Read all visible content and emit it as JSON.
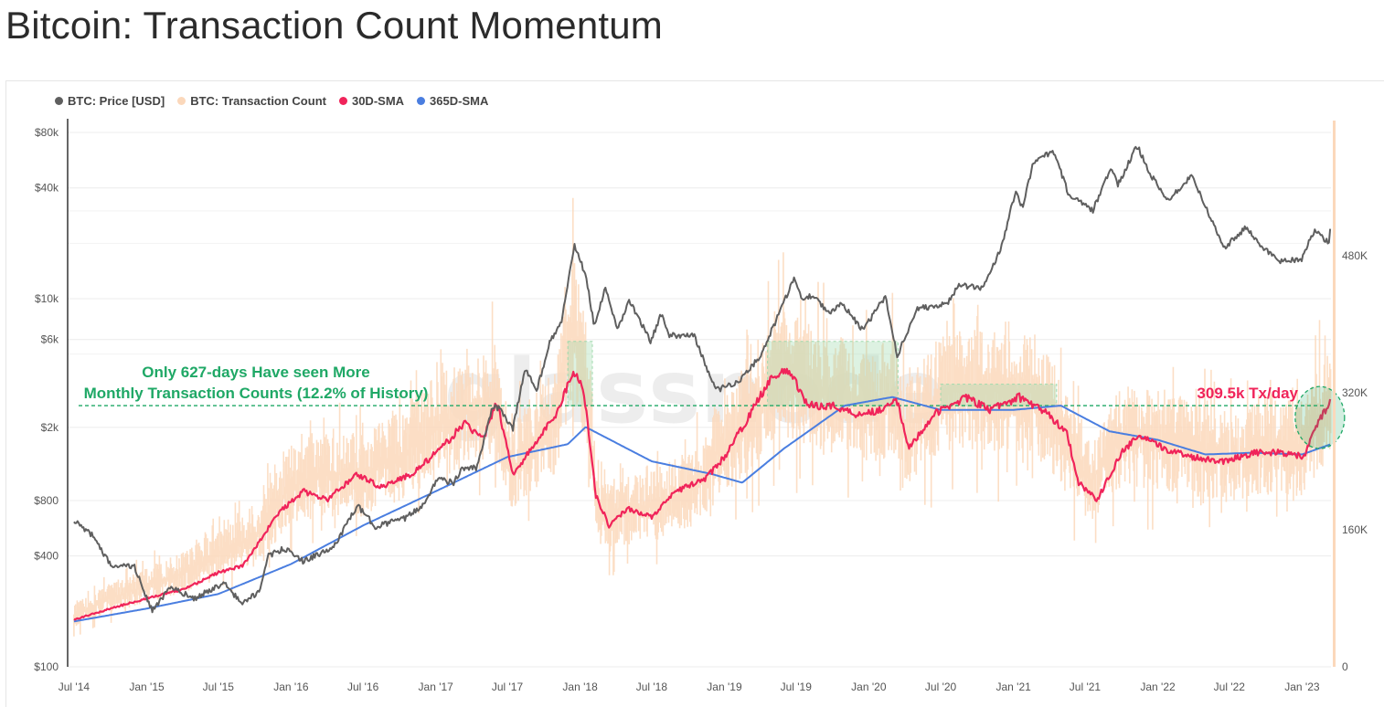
{
  "page": {
    "title": "Bitcoin: Transaction Count Momentum"
  },
  "legend": [
    {
      "label": "BTC: Price [USD]",
      "color": "#5f5f5f"
    },
    {
      "label": "BTC: Transaction Count",
      "color": "#fbd8bb"
    },
    {
      "label": "30D-SMA",
      "color": "#f0245a"
    },
    {
      "label": "365D-SMA",
      "color": "#4a7ee0"
    }
  ],
  "watermark": "glassnode",
  "chart_data": {
    "type": "line",
    "x_axis": {
      "ticks": [
        "Jul '14",
        "Jan '15",
        "Jul '15",
        "Jan '16",
        "Jul '16",
        "Jan '17",
        "Jul '17",
        "Jan '18",
        "Jul '18",
        "Jan '19",
        "Jul '19",
        "Jan '20",
        "Jul '20",
        "Jan '21",
        "Jul '21",
        "Jan '22",
        "Jul '22",
        "Jan '23"
      ],
      "tick_dates": [
        "2014-07-01",
        "2015-01-01",
        "2015-07-01",
        "2016-01-01",
        "2016-07-01",
        "2017-01-01",
        "2017-07-01",
        "2018-01-01",
        "2018-07-01",
        "2019-01-01",
        "2019-07-01",
        "2020-01-01",
        "2020-07-01",
        "2021-01-01",
        "2021-07-01",
        "2022-01-01",
        "2022-07-01",
        "2023-01-01"
      ],
      "range": [
        "2014-06-15",
        "2023-03-15"
      ]
    },
    "y_left": {
      "scale": "log",
      "unit": "USD",
      "ticks": [
        {
          "value": 100,
          "label": "$100"
        },
        {
          "value": 400,
          "label": "$400"
        },
        {
          "value": 800,
          "label": "$800"
        },
        {
          "value": 2000,
          "label": "$2k"
        },
        {
          "value": 6000,
          "label": "$6k"
        },
        {
          "value": 10000,
          "label": "$10k"
        },
        {
          "value": 40000,
          "label": "$40k"
        },
        {
          "value": 80000,
          "label": "$80k"
        }
      ],
      "range": [
        100,
        95000
      ]
    },
    "y_right": {
      "scale": "linear",
      "ticks": [
        {
          "value": 0,
          "label": "0"
        },
        {
          "value": 160000,
          "label": "160K"
        },
        {
          "value": 320000,
          "label": "320K"
        },
        {
          "value": 480000,
          "label": "480K"
        }
      ],
      "range": [
        0,
        640000
      ]
    },
    "grid": true,
    "legend_position": "top-left",
    "series": [
      {
        "name": "BTC: Price [USD]",
        "axis": "left",
        "color": "#5f5f5f",
        "points": [
          [
            "2014-07-01",
            630
          ],
          [
            "2014-08-15",
            520
          ],
          [
            "2014-10-01",
            360
          ],
          [
            "2014-12-01",
            350
          ],
          [
            "2015-01-15",
            200
          ],
          [
            "2015-03-01",
            270
          ],
          [
            "2015-05-01",
            235
          ],
          [
            "2015-07-15",
            285
          ],
          [
            "2015-08-30",
            220
          ],
          [
            "2015-10-15",
            260
          ],
          [
            "2015-11-05",
            400
          ],
          [
            "2015-12-15",
            440
          ],
          [
            "2016-02-01",
            375
          ],
          [
            "2016-04-15",
            440
          ],
          [
            "2016-06-17",
            750
          ],
          [
            "2016-08-01",
            580
          ],
          [
            "2016-10-15",
            640
          ],
          [
            "2016-12-01",
            760
          ],
          [
            "2017-01-04",
            1050
          ],
          [
            "2017-02-15",
            1000
          ],
          [
            "2017-03-10",
            1200
          ],
          [
            "2017-04-15",
            1200
          ],
          [
            "2017-05-25",
            2600
          ],
          [
            "2017-06-15",
            2500
          ],
          [
            "2017-07-15",
            1950
          ],
          [
            "2017-08-15",
            4200
          ],
          [
            "2017-09-14",
            3200
          ],
          [
            "2017-10-15",
            5700
          ],
          [
            "2017-11-15",
            7500
          ],
          [
            "2017-12-17",
            19500
          ],
          [
            "2018-01-15",
            13500
          ],
          [
            "2018-02-06",
            7000
          ],
          [
            "2018-03-05",
            11500
          ],
          [
            "2018-04-05",
            6700
          ],
          [
            "2018-05-05",
            9800
          ],
          [
            "2018-06-28",
            5900
          ],
          [
            "2018-07-25",
            8200
          ],
          [
            "2018-08-15",
            6300
          ],
          [
            "2018-10-15",
            6400
          ],
          [
            "2018-11-25",
            3800
          ],
          [
            "2018-12-15",
            3200
          ],
          [
            "2019-02-10",
            3600
          ],
          [
            "2019-04-02",
            4900
          ],
          [
            "2019-05-15",
            7900
          ],
          [
            "2019-06-26",
            13000
          ],
          [
            "2019-07-15",
            10000
          ],
          [
            "2019-08-15",
            10500
          ],
          [
            "2019-09-25",
            8200
          ],
          [
            "2019-10-26",
            9500
          ],
          [
            "2019-12-17",
            6700
          ],
          [
            "2020-02-12",
            10300
          ],
          [
            "2020-03-13",
            4900
          ],
          [
            "2020-05-01",
            8800
          ],
          [
            "2020-07-15",
            9300
          ],
          [
            "2020-08-15",
            11800
          ],
          [
            "2020-10-15",
            11400
          ],
          [
            "2020-12-01",
            19000
          ],
          [
            "2021-01-08",
            40000
          ],
          [
            "2021-01-23",
            31000
          ],
          [
            "2021-02-21",
            56000
          ],
          [
            "2021-04-14",
            63000
          ],
          [
            "2021-05-20",
            37000
          ],
          [
            "2021-07-20",
            30000
          ],
          [
            "2021-09-06",
            52000
          ],
          [
            "2021-09-21",
            41000
          ],
          [
            "2021-11-10",
            68000
          ],
          [
            "2021-12-15",
            47000
          ],
          [
            "2022-01-24",
            34000
          ],
          [
            "2022-03-29",
            47000
          ],
          [
            "2022-05-12",
            28000
          ],
          [
            "2022-06-18",
            19000
          ],
          [
            "2022-08-14",
            24500
          ],
          [
            "2022-09-15",
            19500
          ],
          [
            "2022-11-09",
            16000
          ],
          [
            "2022-12-31",
            16500
          ],
          [
            "2023-02-01",
            23500
          ],
          [
            "2023-03-10",
            20000
          ],
          [
            "2023-03-15",
            26000
          ]
        ]
      },
      {
        "name": "BTC: Transaction Count",
        "axis": "right",
        "color": "#fbd8bb",
        "points": [
          [
            "2014-07-01",
            60000
          ],
          [
            "2014-10-01",
            80000
          ],
          [
            "2015-01-01",
            95000
          ],
          [
            "2015-04-01",
            110000
          ],
          [
            "2015-07-01",
            130000
          ],
          [
            "2015-10-01",
            150000
          ],
          [
            "2016-01-01",
            210000
          ],
          [
            "2016-04-01",
            225000
          ],
          [
            "2016-07-01",
            225000
          ],
          [
            "2016-10-01",
            245000
          ],
          [
            "2017-01-01",
            280000
          ],
          [
            "2017-04-01",
            300000
          ],
          [
            "2017-06-01",
            310000
          ],
          [
            "2017-07-15",
            230000
          ],
          [
            "2017-09-01",
            260000
          ],
          [
            "2017-11-01",
            290000
          ],
          [
            "2017-12-15",
            410000
          ],
          [
            "2018-01-15",
            330000
          ],
          [
            "2018-02-15",
            180000
          ],
          [
            "2018-04-15",
            180000
          ],
          [
            "2018-07-15",
            190000
          ],
          [
            "2018-10-15",
            210000
          ],
          [
            "2019-01-01",
            260000
          ],
          [
            "2019-03-01",
            285000
          ],
          [
            "2019-05-15",
            350000
          ],
          [
            "2019-08-01",
            330000
          ],
          [
            "2019-10-01",
            320000
          ],
          [
            "2020-01-01",
            300000
          ],
          [
            "2020-03-01",
            320000
          ],
          [
            "2020-04-01",
            270000
          ],
          [
            "2020-07-01",
            320000
          ],
          [
            "2020-10-01",
            325000
          ],
          [
            "2021-01-01",
            320000
          ],
          [
            "2021-03-01",
            320000
          ],
          [
            "2021-05-15",
            260000
          ],
          [
            "2021-07-15",
            215000
          ],
          [
            "2021-10-01",
            270000
          ],
          [
            "2022-01-01",
            265000
          ],
          [
            "2022-04-01",
            255000
          ],
          [
            "2022-07-01",
            245000
          ],
          [
            "2022-10-01",
            255000
          ],
          [
            "2023-01-01",
            255000
          ],
          [
            "2023-02-15",
            295000
          ],
          [
            "2023-03-15",
            305000
          ]
        ]
      },
      {
        "name": "30D-SMA",
        "axis": "right",
        "color": "#f0245a",
        "points": [
          [
            "2014-07-01",
            55000
          ],
          [
            "2014-10-01",
            68000
          ],
          [
            "2015-01-01",
            80000
          ],
          [
            "2015-04-01",
            90000
          ],
          [
            "2015-07-01",
            110000
          ],
          [
            "2015-09-01",
            118000
          ],
          [
            "2015-12-01",
            180000
          ],
          [
            "2016-02-01",
            205000
          ],
          [
            "2016-04-01",
            195000
          ],
          [
            "2016-06-15",
            225000
          ],
          [
            "2016-08-15",
            210000
          ],
          [
            "2016-11-01",
            225000
          ],
          [
            "2017-01-15",
            255000
          ],
          [
            "2017-03-15",
            285000
          ],
          [
            "2017-05-01",
            265000
          ],
          [
            "2017-06-05",
            310000
          ],
          [
            "2017-07-15",
            225000
          ],
          [
            "2017-09-01",
            255000
          ],
          [
            "2017-11-01",
            295000
          ],
          [
            "2017-12-15",
            345000
          ],
          [
            "2018-01-10",
            325000
          ],
          [
            "2018-02-10",
            200000
          ],
          [
            "2018-03-15",
            165000
          ],
          [
            "2018-05-01",
            185000
          ],
          [
            "2018-07-01",
            175000
          ],
          [
            "2018-09-01",
            205000
          ],
          [
            "2018-11-15",
            220000
          ],
          [
            "2019-01-01",
            245000
          ],
          [
            "2019-03-01",
            290000
          ],
          [
            "2019-05-01",
            340000
          ],
          [
            "2019-06-15",
            345000
          ],
          [
            "2019-08-01",
            305000
          ],
          [
            "2019-10-01",
            305000
          ],
          [
            "2019-12-01",
            295000
          ],
          [
            "2020-02-01",
            300000
          ],
          [
            "2020-03-10",
            315000
          ],
          [
            "2020-04-10",
            255000
          ],
          [
            "2020-06-15",
            295000
          ],
          [
            "2020-09-01",
            315000
          ],
          [
            "2020-11-01",
            300000
          ],
          [
            "2021-01-15",
            315000
          ],
          [
            "2021-03-15",
            300000
          ],
          [
            "2021-05-15",
            275000
          ],
          [
            "2021-06-15",
            215000
          ],
          [
            "2021-08-01",
            195000
          ],
          [
            "2021-10-01",
            250000
          ],
          [
            "2021-11-15",
            270000
          ],
          [
            "2022-01-15",
            255000
          ],
          [
            "2022-04-01",
            245000
          ],
          [
            "2022-06-15",
            240000
          ],
          [
            "2022-09-01",
            250000
          ],
          [
            "2022-11-15",
            250000
          ],
          [
            "2023-01-05",
            245000
          ],
          [
            "2023-02-15",
            290000
          ],
          [
            "2023-03-15",
            309500
          ]
        ]
      },
      {
        "name": "365D-SMA",
        "axis": "right",
        "color": "#4a7ee0",
        "points": [
          [
            "2014-07-01",
            53000
          ],
          [
            "2015-01-01",
            68000
          ],
          [
            "2015-07-01",
            85000
          ],
          [
            "2016-01-01",
            120000
          ],
          [
            "2016-07-01",
            165000
          ],
          [
            "2017-01-01",
            205000
          ],
          [
            "2017-07-01",
            245000
          ],
          [
            "2017-12-01",
            260000
          ],
          [
            "2018-01-15",
            280000
          ],
          [
            "2018-07-01",
            240000
          ],
          [
            "2018-12-01",
            225000
          ],
          [
            "2019-02-15",
            215000
          ],
          [
            "2019-06-01",
            255000
          ],
          [
            "2019-11-01",
            305000
          ],
          [
            "2020-03-01",
            315000
          ],
          [
            "2020-07-01",
            300000
          ],
          [
            "2021-01-01",
            300000
          ],
          [
            "2021-05-01",
            305000
          ],
          [
            "2021-09-01",
            275000
          ],
          [
            "2022-01-01",
            265000
          ],
          [
            "2022-05-01",
            248000
          ],
          [
            "2022-09-01",
            250000
          ],
          [
            "2023-01-01",
            248000
          ],
          [
            "2023-03-15",
            260000
          ]
        ]
      }
    ],
    "annotations": [
      {
        "type": "hline",
        "axis": "right",
        "value": 305000,
        "color": "#1fa866",
        "style": "dashed"
      },
      {
        "type": "text",
        "text": "Only 627-days Have seen More Monthly Transaction Counts (12.2% of History)",
        "color": "#1fa866"
      },
      {
        "type": "text",
        "text": "309.5k Tx/day",
        "color": "#f0245a"
      },
      {
        "type": "shaded_region",
        "x": [
          "2017-12-01",
          "2018-02-01"
        ],
        "y": [
          305000,
          380000
        ],
        "color": "#9fd9ad"
      },
      {
        "type": "shaded_region",
        "x": [
          "2019-04-20",
          "2020-03-15"
        ],
        "y": [
          305000,
          380000
        ],
        "color": "#9fd9ad"
      },
      {
        "type": "shaded_region",
        "x": [
          "2020-07-01",
          "2021-04-20"
        ],
        "y": [
          305000,
          330000
        ],
        "color": "#9fd9ad"
      },
      {
        "type": "ellipse",
        "center": [
          "2023-02-01",
          290000
        ],
        "color": "#1fa866"
      }
    ]
  }
}
